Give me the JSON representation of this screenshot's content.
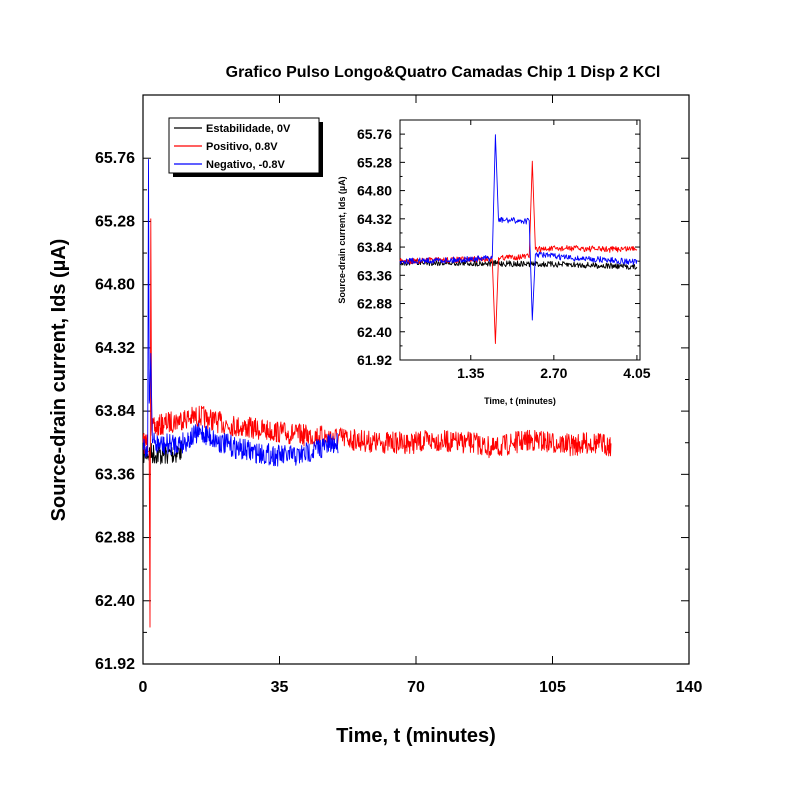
{
  "chart_data": [
    {
      "type": "line",
      "title": "Grafico Pulso Longo&Quatro Camadas Chip 1 Disp 2 KCl",
      "xlabel": "Time, t (minutes)",
      "ylabel": "Source-drain current, Ids (µA)",
      "xlim": [
        0,
        140
      ],
      "ylim": [
        61.92,
        66.24
      ],
      "xticks": [
        "0",
        "35",
        "70",
        "105",
        "140"
      ],
      "yticks": [
        "61.92",
        "62.40",
        "62.88",
        "63.36",
        "63.84",
        "64.32",
        "64.80",
        "65.28",
        "65.76"
      ],
      "legend_position": "top-left",
      "series": [
        {
          "name": "Estabilidade, 0V",
          "color": "#000000",
          "x": [
            0,
            2,
            5,
            8,
            10
          ],
          "y": [
            63.52,
            63.52,
            63.51,
            63.52,
            63.54
          ]
        },
        {
          "name": "Positivo, 0.8V",
          "color": "#ff0000",
          "x": [
            0,
            1.6,
            1.8,
            2.0,
            2.2,
            2.4,
            5,
            10,
            15,
            20,
            25,
            30,
            35,
            40,
            45,
            50,
            55,
            60,
            65,
            70,
            75,
            80,
            85,
            90,
            95,
            100,
            105,
            110,
            115,
            120
          ],
          "y": [
            63.6,
            63.6,
            62.2,
            65.3,
            63.7,
            63.7,
            63.74,
            63.78,
            63.8,
            63.75,
            63.72,
            63.7,
            63.68,
            63.66,
            63.65,
            63.64,
            63.62,
            63.6,
            63.6,
            63.6,
            63.62,
            63.6,
            63.6,
            63.55,
            63.6,
            63.62,
            63.6,
            63.58,
            63.6,
            63.58
          ]
        },
        {
          "name": "Negativo, -0.8V",
          "color": "#0000ff",
          "x": [
            0,
            1.2,
            1.4,
            1.6,
            2.0,
            2.4,
            5,
            10,
            15,
            20,
            25,
            30,
            35,
            40,
            45,
            50
          ],
          "y": [
            63.55,
            63.55,
            65.75,
            63.9,
            64.27,
            63.6,
            63.58,
            63.6,
            63.68,
            63.6,
            63.55,
            63.52,
            63.5,
            63.5,
            63.56,
            63.6
          ]
        }
      ]
    },
    {
      "type": "line",
      "title": "",
      "xlabel": "Time, t (minutes)",
      "ylabel": "Source-drain current, Ids (µA)",
      "xlim": [
        0.2,
        4.1
      ],
      "ylim": [
        61.92,
        66.0
      ],
      "xticks": [
        "1.35",
        "2.70",
        "4.05"
      ],
      "yticks": [
        "61.92",
        "62.40",
        "62.88",
        "63.36",
        "63.84",
        "64.32",
        "64.80",
        "65.28",
        "65.76"
      ],
      "series": [
        {
          "name": "Estabilidade, 0V",
          "color": "#000000",
          "x": [
            0.2,
            1.0,
            1.8,
            2.4,
            3.0,
            3.6,
            4.05
          ],
          "y": [
            63.58,
            63.57,
            63.56,
            63.55,
            63.54,
            63.52,
            63.5
          ]
        },
        {
          "name": "Positivo, 0.8V",
          "color": "#ff0000",
          "x": [
            0.2,
            1.0,
            1.7,
            1.75,
            1.8,
            2.3,
            2.35,
            2.4,
            3.0,
            3.6,
            4.05
          ],
          "y": [
            63.6,
            63.62,
            63.64,
            62.2,
            63.66,
            63.68,
            65.3,
            63.8,
            63.82,
            63.8,
            63.82
          ]
        },
        {
          "name": "Negativo, -0.8V",
          "color": "#0000ff",
          "x": [
            0.2,
            1.0,
            1.7,
            1.75,
            1.8,
            2.3,
            2.35,
            2.4,
            3.0,
            3.6,
            4.05
          ],
          "y": [
            63.6,
            63.62,
            63.65,
            65.75,
            64.3,
            64.28,
            62.6,
            63.72,
            63.65,
            63.62,
            63.58
          ]
        }
      ]
    }
  ]
}
